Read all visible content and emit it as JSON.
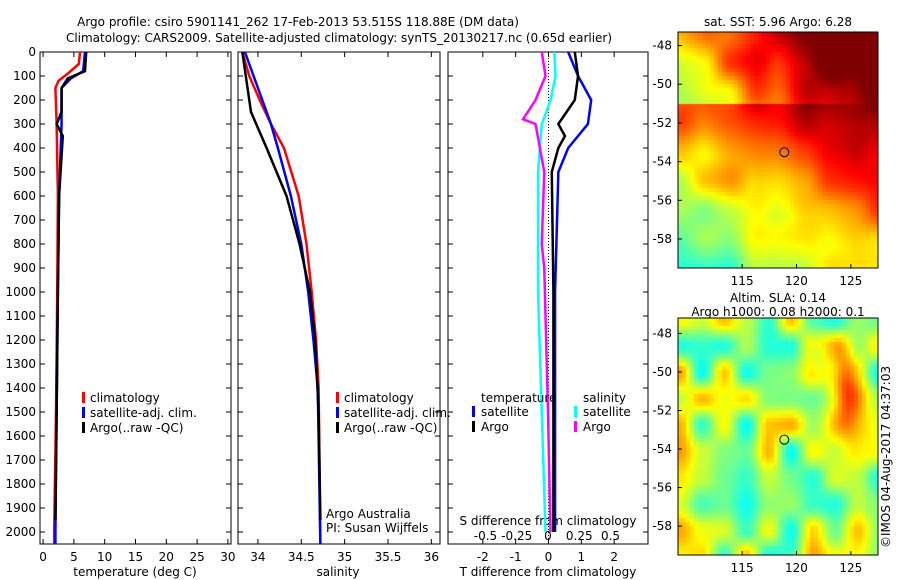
{
  "title": {
    "line1": "Argo profile: csiro 5901141_262 17-Feb-2013 53.515S 118.88E (DM data)",
    "line2": "Climatology: CARS2009. Satellite-adjusted climatology: synTS_20130217.nc (0.65d earlier)"
  },
  "colors": {
    "climatology": "#ff0000",
    "satellite": "#0000ff",
    "argo": "#000000",
    "s_satellite": "#00ffff",
    "s_argo": "#ff00ff"
  },
  "chart_data": [
    {
      "type": "line",
      "name": "temperature",
      "xlabel": "temperature (deg C)",
      "xlim": [
        -0.5,
        30.5
      ],
      "ylim": [
        2050,
        0
      ],
      "xticks": [
        0,
        5,
        10,
        15,
        20,
        25,
        30
      ],
      "yticks": [
        0,
        100,
        200,
        300,
        400,
        500,
        600,
        700,
        800,
        900,
        1000,
        1100,
        1200,
        1300,
        1400,
        1500,
        1600,
        1700,
        1800,
        1900,
        2000
      ],
      "legend": [
        "climatology",
        "satellite-adj. clim.",
        "Argo(..raw -QC)"
      ],
      "series": [
        {
          "name": "climatology",
          "color": "#ff0000",
          "points": [
            [
              6,
              0
            ],
            [
              5.8,
              50
            ],
            [
              4,
              90
            ],
            [
              2.5,
              120
            ],
            [
              2,
              150
            ],
            [
              2.2,
              300
            ],
            [
              2.4,
              600
            ],
            [
              2.3,
              1000
            ],
            [
              2.1,
              1500
            ],
            [
              1.8,
              2000
            ],
            [
              1.8,
              2050
            ]
          ]
        },
        {
          "name": "satellite-adj. clim.",
          "color": "#0000ff",
          "points": [
            [
              6.8,
              0
            ],
            [
              6.5,
              80
            ],
            [
              4.5,
              110
            ],
            [
              3,
              150
            ],
            [
              3,
              300
            ],
            [
              2.6,
              600
            ],
            [
              2.4,
              1000
            ],
            [
              2.2,
              1500
            ],
            [
              2,
              2000
            ],
            [
              2,
              2050
            ]
          ]
        },
        {
          "name": "Argo(..raw -QC)",
          "color": "#000000",
          "points": [
            [
              7,
              0
            ],
            [
              6.8,
              80
            ],
            [
              4,
              110
            ],
            [
              3,
              150
            ],
            [
              3,
              250
            ],
            [
              2.2,
              300
            ],
            [
              3.2,
              350
            ],
            [
              2.6,
              600
            ],
            [
              2.4,
              1000
            ],
            [
              2.2,
              1500
            ],
            [
              2,
              1950
            ]
          ]
        }
      ]
    },
    {
      "type": "line",
      "name": "salinity",
      "xlabel": "salinity",
      "xlim": [
        33.77,
        36.1
      ],
      "ylim": [
        2050,
        0
      ],
      "xticks": [
        34,
        34.5,
        35,
        35.5,
        36
      ],
      "legend": [
        "climatology",
        "satellite-adj. clim.",
        "Argo(..raw -QC)"
      ],
      "annotation": [
        "Argo Australia",
        "PI: Susan Wijffels"
      ],
      "series": [
        {
          "name": "climatology",
          "color": "#ff0000",
          "points": [
            [
              33.82,
              0
            ],
            [
              33.9,
              100
            ],
            [
              34.02,
              200
            ],
            [
              34.15,
              300
            ],
            [
              34.3,
              400
            ],
            [
              34.47,
              600
            ],
            [
              34.56,
              800
            ],
            [
              34.62,
              1000
            ],
            [
              34.67,
              1200
            ],
            [
              34.7,
              1400
            ],
            [
              34.72,
              2050
            ]
          ]
        },
        {
          "name": "satellite-adj. clim.",
          "color": "#0000ff",
          "points": [
            [
              33.85,
              0
            ],
            [
              33.95,
              100
            ],
            [
              34.05,
              200
            ],
            [
              34.15,
              300
            ],
            [
              34.23,
              400
            ],
            [
              34.38,
              600
            ],
            [
              34.5,
              800
            ],
            [
              34.58,
              1000
            ],
            [
              34.64,
              1200
            ],
            [
              34.69,
              1400
            ],
            [
              34.72,
              2050
            ]
          ]
        },
        {
          "name": "Argo(..raw -QC)",
          "color": "#000000",
          "points": [
            [
              33.82,
              0
            ],
            [
              33.88,
              150
            ],
            [
              33.92,
              250
            ],
            [
              33.98,
              300
            ],
            [
              34.1,
              400
            ],
            [
              34.33,
              600
            ],
            [
              34.48,
              800
            ],
            [
              34.6,
              1000
            ],
            [
              34.66,
              1200
            ],
            [
              34.7,
              1500
            ],
            [
              34.72,
              1950
            ]
          ]
        }
      ]
    },
    {
      "type": "line",
      "name": "difference",
      "xlabel": "T difference from climatology",
      "x2label": "S difference from climatology",
      "xlim": [
        -3.06,
        3.03
      ],
      "x2lim": [
        -0.8,
        0.8
      ],
      "ylim": [
        2050,
        0
      ],
      "xticks": [
        -2,
        -1,
        0,
        1,
        2
      ],
      "x2ticks": [
        -0.5,
        -0.25,
        0,
        0.25,
        0.5
      ],
      "legend": {
        "temperature_header": "temperature",
        "salinity_header": "salinity",
        "t_satellite": "satellite",
        "t_argo": "Argo",
        "s_satellite": "satellite",
        "s_argo": "Argo"
      },
      "series": [
        {
          "name": "T satellite",
          "axis": "T",
          "color": "#0000ff",
          "points": [
            [
              0.6,
              0
            ],
            [
              0.9,
              100
            ],
            [
              1.3,
              200
            ],
            [
              1.2,
              300
            ],
            [
              0.6,
              400
            ],
            [
              0.3,
              500
            ],
            [
              0.2,
              1000
            ],
            [
              0.2,
              2000
            ]
          ]
        },
        {
          "name": "T Argo",
          "axis": "T",
          "color": "#000000",
          "points": [
            [
              0.8,
              0
            ],
            [
              0.9,
              100
            ],
            [
              0.8,
              200
            ],
            [
              0.3,
              300
            ],
            [
              0.5,
              350
            ],
            [
              0.3,
              400
            ],
            [
              0.1,
              500
            ],
            [
              0.15,
              1000
            ],
            [
              0.15,
              2000
            ]
          ]
        },
        {
          "name": "S satellite",
          "axis": "S",
          "color": "#00ffff",
          "points": [
            [
              0.05,
              0
            ],
            [
              0.06,
              100
            ],
            [
              0.02,
              200
            ],
            [
              -0.05,
              300
            ],
            [
              -0.08,
              500
            ],
            [
              -0.08,
              1000
            ],
            [
              -0.02,
              2000
            ]
          ]
        },
        {
          "name": "S Argo",
          "axis": "S",
          "color": "#ff00ff",
          "points": [
            [
              -0.05,
              0
            ],
            [
              -0.02,
              100
            ],
            [
              -0.1,
              200
            ],
            [
              -0.2,
              280
            ],
            [
              -0.1,
              300
            ],
            [
              -0.03,
              500
            ],
            [
              -0.05,
              800
            ],
            [
              -0.03,
              900
            ],
            [
              0,
              1500
            ],
            [
              0.02,
              2000
            ]
          ]
        }
      ]
    },
    {
      "type": "heatmap",
      "name": "sst-map",
      "title": "sat. SST: 5.96 Argo: 6.28",
      "xlim": [
        109.1,
        127.5
      ],
      "ylim": [
        -59.5,
        -47.3
      ],
      "xticks": [
        115,
        120,
        125
      ],
      "yticks": [
        -48,
        -50,
        -52,
        -54,
        -56,
        -58
      ],
      "marker": [
        118.88,
        -53.515
      ]
    },
    {
      "type": "heatmap",
      "name": "sla-map",
      "title": [
        "Altim. SLA: 0.14",
        "Argo h1000: 0.08 h2000: 0.1"
      ],
      "xlim": [
        109.1,
        127.5
      ],
      "ylim": [
        -59.5,
        -47.2
      ],
      "xticks": [
        115,
        120,
        125
      ],
      "yticks": [
        -48,
        -50,
        -52,
        -54,
        -56,
        -58
      ],
      "marker": [
        118.88,
        -53.515
      ]
    }
  ],
  "credit": "©IMOS 04-Aug-2017 04:37:03"
}
